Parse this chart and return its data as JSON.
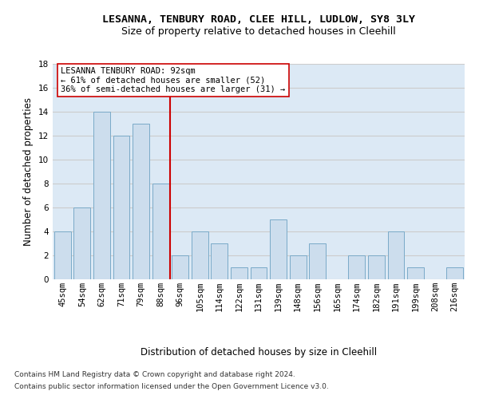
{
  "title_line1": "LESANNA, TENBURY ROAD, CLEE HILL, LUDLOW, SY8 3LY",
  "title_line2": "Size of property relative to detached houses in Cleehill",
  "xlabel": "Distribution of detached houses by size in Cleehill",
  "ylabel": "Number of detached properties",
  "categories": [
    "45sqm",
    "54sqm",
    "62sqm",
    "71sqm",
    "79sqm",
    "88sqm",
    "96sqm",
    "105sqm",
    "114sqm",
    "122sqm",
    "131sqm",
    "139sqm",
    "148sqm",
    "156sqm",
    "165sqm",
    "174sqm",
    "182sqm",
    "191sqm",
    "199sqm",
    "208sqm",
    "216sqm"
  ],
  "values": [
    4,
    6,
    14,
    12,
    13,
    8,
    2,
    4,
    3,
    1,
    1,
    5,
    2,
    3,
    0,
    2,
    2,
    4,
    1,
    0,
    1
  ],
  "bar_color": "#ccdded",
  "bar_edge_color": "#7aaac8",
  "highlight_line_index": 6,
  "highlight_line_color": "#cc0000",
  "annotation_line1": "LESANNA TENBURY ROAD: 92sqm",
  "annotation_line2": "← 61% of detached houses are smaller (52)",
  "annotation_line3": "36% of semi-detached houses are larger (31) →",
  "annotation_box_color": "#ffffff",
  "annotation_box_edge": "#cc0000",
  "ylim": [
    0,
    18
  ],
  "yticks": [
    0,
    2,
    4,
    6,
    8,
    10,
    12,
    14,
    16,
    18
  ],
  "grid_color": "#cccccc",
  "plot_bg_color": "#dce9f5",
  "footer_line1": "Contains HM Land Registry data © Crown copyright and database right 2024.",
  "footer_line2": "Contains public sector information licensed under the Open Government Licence v3.0.",
  "title_fontsize": 9.5,
  "subtitle_fontsize": 9,
  "axis_label_fontsize": 8.5,
  "tick_fontsize": 7.5,
  "annotation_fontsize": 7.5,
  "footer_fontsize": 6.5
}
